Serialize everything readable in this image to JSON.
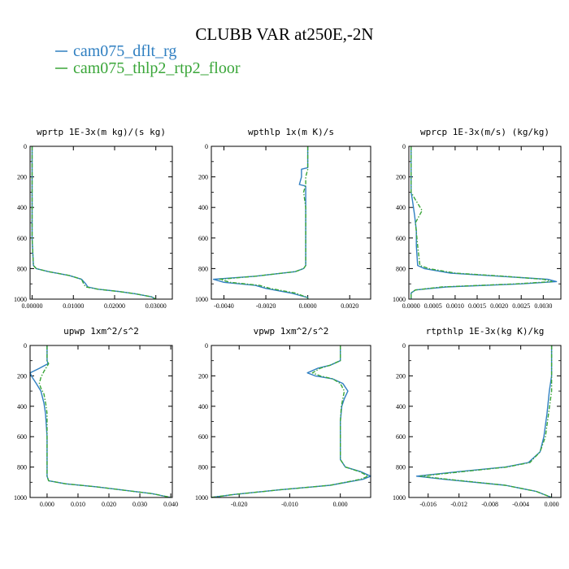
{
  "figure": {
    "title": "CLUBB VAR at250E,-2N",
    "legend": [
      {
        "label": "cam075_dflt_rg",
        "color": "#2f7fc1"
      },
      {
        "label": "cam075_thlp2_rtp2_floor",
        "color": "#3aa639"
      }
    ]
  },
  "chart_data": [
    {
      "type": "line",
      "title": "wprtp  1E-3x(m kg)/(s kg)",
      "xlim": [
        -0.0005,
        0.034
      ],
      "ylim": [
        0,
        1000
      ],
      "y_reversed": true,
      "xticks": [
        0,
        0.01,
        0.02,
        0.03
      ],
      "xtick_labels": [
        "0.00000",
        "0.01000",
        "0.02000",
        "0.03000"
      ],
      "yticks": [
        0,
        200,
        400,
        600,
        800,
        1000
      ],
      "series": [
        {
          "name": "cam075_dflt_rg",
          "color": "#2f7fc1",
          "style": "solid",
          "x": [
            0,
            0,
            0,
            0,
            0.0003,
            0.001,
            0.004,
            0.009,
            0.012,
            0.013,
            0.0135,
            0.016,
            0.021,
            0.025,
            0.029,
            0.03
          ],
          "y": [
            0,
            200,
            400,
            600,
            780,
            800,
            820,
            845,
            870,
            900,
            920,
            935,
            950,
            965,
            985,
            1000
          ]
        },
        {
          "name": "cam075_thlp2_rtp2_floor",
          "color": "#3aa639",
          "style": "dashdot",
          "x": [
            0,
            0,
            0,
            0,
            0.0003,
            0.001,
            0.004,
            0.009,
            0.012,
            0.0125,
            0.013,
            0.016,
            0.021,
            0.025,
            0.029,
            0.03
          ],
          "y": [
            0,
            200,
            400,
            600,
            780,
            800,
            820,
            845,
            870,
            900,
            920,
            935,
            950,
            965,
            985,
            1000
          ]
        }
      ]
    },
    {
      "type": "line",
      "title": "wpthlp  1x(m K)/s",
      "xlim": [
        -0.0046,
        0.003
      ],
      "ylim": [
        0,
        1000
      ],
      "y_reversed": true,
      "xticks": [
        -0.004,
        -0.002,
        0,
        0.002
      ],
      "xtick_labels": [
        "-0.0040",
        "-0.0020",
        "0.0000",
        "0.0020"
      ],
      "yticks": [
        0,
        200,
        400,
        600,
        800,
        1000
      ],
      "series": [
        {
          "name": "cam075_dflt_rg",
          "color": "#2f7fc1",
          "style": "solid",
          "x": [
            0,
            0,
            0,
            -0.0003,
            -0.0003,
            -0.0004,
            -0.0001,
            -0.0001,
            -0.0001,
            -0.0001,
            -0.0002,
            -0.0006,
            -0.0025,
            -0.0045,
            -0.004,
            -0.0025,
            -0.002,
            -0.0008,
            0,
            0
          ],
          "y": [
            0,
            100,
            140,
            150,
            200,
            250,
            260,
            400,
            600,
            780,
            800,
            820,
            850,
            870,
            890,
            910,
            930,
            960,
            990,
            1000
          ]
        },
        {
          "name": "cam075_thlp2_rtp2_floor",
          "color": "#3aa639",
          "style": "dashdot",
          "x": [
            0,
            0,
            0,
            0,
            -0.0001,
            -0.0001,
            -0.0002,
            -0.0001,
            -0.0001,
            -0.0001,
            -0.0002,
            -0.0006,
            -0.0025,
            -0.0042,
            -0.0037,
            -0.0023,
            -0.0018,
            -0.0006,
            0,
            0
          ],
          "y": [
            0,
            100,
            140,
            150,
            200,
            250,
            300,
            400,
            600,
            780,
            800,
            820,
            850,
            870,
            890,
            910,
            930,
            960,
            990,
            1000
          ]
        }
      ]
    },
    {
      "type": "line",
      "title": "wprcp  1E-3x(m/s) (kg/kg)",
      "xlim": [
        -5e-05,
        0.0034
      ],
      "ylim": [
        0,
        1000
      ],
      "y_reversed": true,
      "xticks": [
        0,
        0.0005,
        0.001,
        0.0015,
        0.002,
        0.0025,
        0.003
      ],
      "xtick_labels": [
        "0.0000",
        "0.0005",
        "0.0010",
        "0.0015",
        "0.0020",
        "0.0025",
        "0.0030"
      ],
      "yticks": [
        0,
        200,
        400,
        600,
        800,
        1000
      ],
      "series": [
        {
          "name": "cam075_dflt_rg",
          "color": "#2f7fc1",
          "style": "solid",
          "x": [
            0,
            0,
            0,
            3e-05,
            8e-05,
            0.00012,
            0.00012,
            0.00015,
            0.0003,
            0.0009,
            0.002,
            0.0031,
            0.0033,
            0.0025,
            0.0008,
            0.0001,
            0,
            0
          ],
          "y": [
            0,
            200,
            300,
            350,
            450,
            550,
            650,
            780,
            800,
            830,
            850,
            870,
            885,
            900,
            920,
            940,
            960,
            1000
          ]
        },
        {
          "name": "cam075_thlp2_rtp2_floor",
          "color": "#3aa639",
          "style": "dashdot",
          "x": [
            0,
            0,
            0,
            0.0001,
            0.00025,
            0.0001,
            0.00015,
            0.0002,
            0.0004,
            0.001,
            0.0021,
            0.003,
            0.0032,
            0.0024,
            0.0007,
            0.0001,
            0,
            0
          ],
          "y": [
            0,
            200,
            300,
            350,
            420,
            500,
            650,
            780,
            800,
            830,
            850,
            870,
            885,
            900,
            920,
            940,
            960,
            1000
          ]
        }
      ]
    },
    {
      "type": "line",
      "title": "upwp  1xm^2/s^2",
      "xlim": [
        -0.0055,
        0.0405
      ],
      "ylim": [
        0,
        1000
      ],
      "y_reversed": true,
      "xticks": [
        0,
        0.01,
        0.02,
        0.03,
        0.04
      ],
      "xtick_labels": [
        "0.000",
        "0.010",
        "0.020",
        "0.030",
        "0.040"
      ],
      "yticks": [
        0,
        200,
        400,
        600,
        800,
        1000
      ],
      "series": [
        {
          "name": "cam075_dflt_rg",
          "color": "#2f7fc1",
          "style": "solid",
          "x": [
            0,
            0,
            0.0003,
            -0.0025,
            -0.0055,
            -0.0048,
            -0.0035,
            -0.002,
            -0.001,
            -0.0005,
            0,
            0,
            0,
            0.0005,
            0.006,
            0.016,
            0.026,
            0.034,
            0.04
          ],
          "y": [
            0,
            100,
            120,
            150,
            180,
            210,
            250,
            300,
            380,
            450,
            600,
            800,
            860,
            890,
            910,
            930,
            955,
            975,
            1000
          ]
        },
        {
          "name": "cam075_thlp2_rtp2_floor",
          "color": "#3aa639",
          "style": "dashdot",
          "x": [
            0,
            0,
            0.0005,
            -0.001,
            -0.002,
            -0.0025,
            -0.002,
            -0.001,
            -0.0003,
            0,
            0,
            0,
            0,
            0.0005,
            0.006,
            0.016,
            0.026,
            0.034,
            0.04
          ],
          "y": [
            0,
            100,
            120,
            170,
            210,
            250,
            280,
            320,
            400,
            450,
            600,
            800,
            860,
            890,
            910,
            930,
            955,
            975,
            1000
          ]
        }
      ]
    },
    {
      "type": "line",
      "title": "vpwp  1xm^2/s^2",
      "xlim": [
        -0.0255,
        0.006
      ],
      "ylim": [
        0,
        1000
      ],
      "y_reversed": true,
      "xticks": [
        -0.02,
        -0.01,
        0
      ],
      "xtick_labels": [
        "-0.020",
        "-0.010",
        "0.000"
      ],
      "yticks": [
        0,
        200,
        400,
        600,
        800,
        1000
      ],
      "series": [
        {
          "name": "cam075_dflt_rg",
          "color": "#2f7fc1",
          "style": "solid",
          "x": [
            0,
            0,
            -0.002,
            -0.0045,
            -0.0065,
            -0.005,
            -0.0015,
            0.0005,
            0.0015,
            0.0008,
            0.0003,
            0,
            0,
            0.001,
            0.004,
            0.006,
            0.0045,
            -0.002,
            -0.012,
            -0.021,
            -0.0255
          ],
          "y": [
            0,
            100,
            130,
            150,
            180,
            200,
            220,
            250,
            300,
            350,
            400,
            500,
            750,
            800,
            830,
            860,
            880,
            920,
            950,
            980,
            1000
          ]
        },
        {
          "name": "cam075_thlp2_rtp2_floor",
          "color": "#3aa639",
          "style": "dashdot",
          "x": [
            0,
            0,
            -0.002,
            -0.004,
            -0.0055,
            -0.004,
            -0.0015,
            0,
            0.0008,
            0.0005,
            0.0002,
            0,
            0,
            0.001,
            0.0038,
            0.0055,
            0.004,
            -0.002,
            -0.012,
            -0.021,
            -0.0255
          ],
          "y": [
            0,
            100,
            130,
            150,
            180,
            200,
            220,
            250,
            300,
            350,
            400,
            500,
            750,
            800,
            830,
            860,
            880,
            920,
            950,
            980,
            1000
          ]
        }
      ]
    },
    {
      "type": "line",
      "title": "rtpthlp  1E-3x(kg K)/kg",
      "xlim": [
        -0.0185,
        0.0012
      ],
      "ylim": [
        0,
        1000
      ],
      "y_reversed": true,
      "xticks": [
        -0.016,
        -0.012,
        -0.008,
        -0.004,
        0
      ],
      "xtick_labels": [
        "-0.016",
        "-0.012",
        "-0.008",
        "-0.004",
        "0.000"
      ],
      "yticks": [
        0,
        200,
        400,
        600,
        800,
        1000
      ],
      "series": [
        {
          "name": "cam075_dflt_rg",
          "color": "#2f7fc1",
          "style": "solid",
          "x": [
            0,
            0,
            -0.0003,
            -0.0006,
            -0.001,
            -0.0015,
            -0.003,
            -0.006,
            -0.012,
            -0.0175,
            -0.014,
            -0.006,
            -0.002,
            0
          ],
          "y": [
            0,
            200,
            300,
            450,
            600,
            700,
            770,
            800,
            830,
            860,
            880,
            920,
            960,
            1000
          ]
        },
        {
          "name": "cam075_thlp2_rtp2_floor",
          "color": "#3aa639",
          "style": "dashdot",
          "x": [
            0,
            0,
            0,
            -0.0004,
            -0.0008,
            -0.0015,
            -0.0028,
            -0.0058,
            -0.0115,
            -0.017,
            -0.0135,
            -0.006,
            -0.002,
            0
          ],
          "y": [
            0,
            200,
            300,
            450,
            600,
            700,
            770,
            800,
            830,
            860,
            880,
            920,
            960,
            1000
          ]
        }
      ]
    }
  ]
}
